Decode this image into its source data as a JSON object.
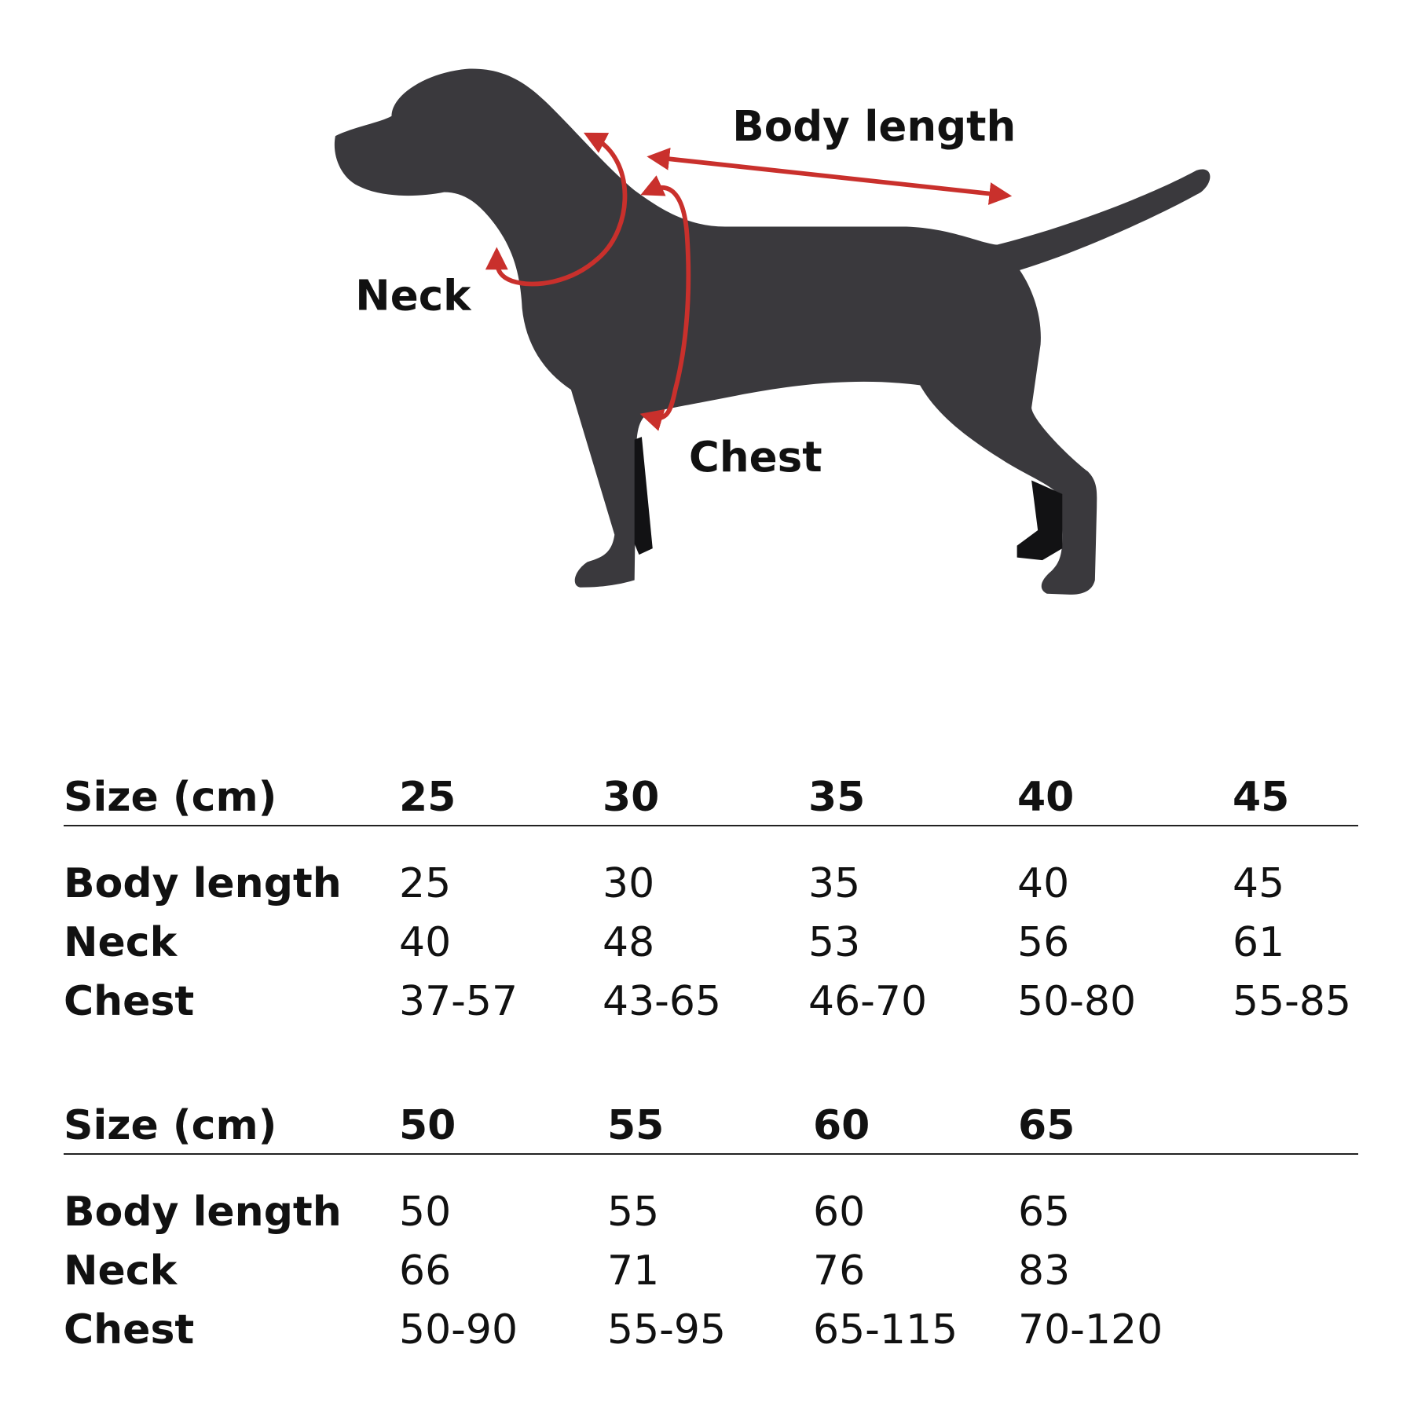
{
  "diagram": {
    "labels": {
      "body_length": "Body length",
      "neck": "Neck",
      "chest": "Chest"
    },
    "colors": {
      "dog": "#3a393d",
      "arrows": "#c9302c"
    }
  },
  "tables": [
    {
      "header": "Size (cm)",
      "sizes": [
        "25",
        "30",
        "35",
        "40",
        "45"
      ],
      "rows": [
        {
          "label": "Body length",
          "values": [
            "25",
            "30",
            "35",
            "40",
            "45"
          ]
        },
        {
          "label": "Neck",
          "values": [
            "40",
            "48",
            "53",
            "56",
            "61"
          ]
        },
        {
          "label": "Chest",
          "values": [
            "37-57",
            "43-65",
            "46-70",
            "50-80",
            "55-85"
          ]
        }
      ]
    },
    {
      "header": "Size (cm)",
      "sizes": [
        "50",
        "55",
        "60",
        "65"
      ],
      "rows": [
        {
          "label": "Body length",
          "values": [
            "50",
            "55",
            "60",
            "65"
          ]
        },
        {
          "label": "Neck",
          "values": [
            "66",
            "71",
            "76",
            "83"
          ]
        },
        {
          "label": "Chest",
          "values": [
            "50-90",
            "55-95",
            "65-115",
            "70-120"
          ]
        }
      ]
    }
  ]
}
